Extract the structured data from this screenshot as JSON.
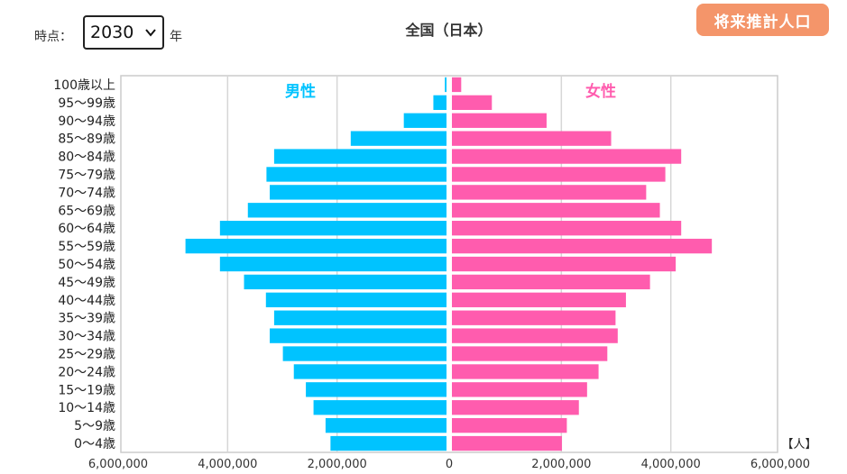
{
  "header": {
    "time_label": "時点：",
    "year_selected": "2030",
    "year_suffix": "年",
    "future_button_label": "将来推計人口"
  },
  "colors": {
    "male": "#00c3ff",
    "female": "#ff5cae",
    "button": "#f4956a"
  },
  "icons": {
    "select": "chevron-down-icon"
  },
  "chart_data": {
    "type": "bar",
    "orientation": "horizontal-population-pyramid",
    "title": "全国（日本）",
    "unit_label": "【人】",
    "categories": [
      "100歳以上",
      "95〜99歳",
      "90〜94歳",
      "85〜89歳",
      "80〜84歳",
      "75〜79歳",
      "70〜74歳",
      "65〜69歳",
      "60〜64歳",
      "55〜59歳",
      "50〜54歳",
      "45〜49歳",
      "40〜44歳",
      "35〜39歳",
      "30〜34歳",
      "25〜29歳",
      "20〜24歳",
      "15〜19歳",
      "10〜14歳",
      "5〜9歳",
      "0〜4歳"
    ],
    "series": [
      {
        "name": "男性",
        "values": [
          30000,
          240000,
          780000,
          1750000,
          3150000,
          3290000,
          3230000,
          3630000,
          4140000,
          4770000,
          4140000,
          3700000,
          3300000,
          3150000,
          3230000,
          2990000,
          2790000,
          2570000,
          2430000,
          2210000,
          2120000
        ]
      },
      {
        "name": "女性",
        "values": [
          170000,
          730000,
          1730000,
          2910000,
          4190000,
          3900000,
          3550000,
          3800000,
          4190000,
          4750000,
          4090000,
          3620000,
          3180000,
          2990000,
          3030000,
          2840000,
          2680000,
          2470000,
          2320000,
          2100000,
          2010000
        ]
      }
    ],
    "xlim": [
      -6000000,
      6000000
    ],
    "x_ticks": [
      "6,000,000",
      "4,000,000",
      "2,000,000",
      "0",
      "2,000,000",
      "4,000,000",
      "6,000,000"
    ],
    "grid": true
  }
}
